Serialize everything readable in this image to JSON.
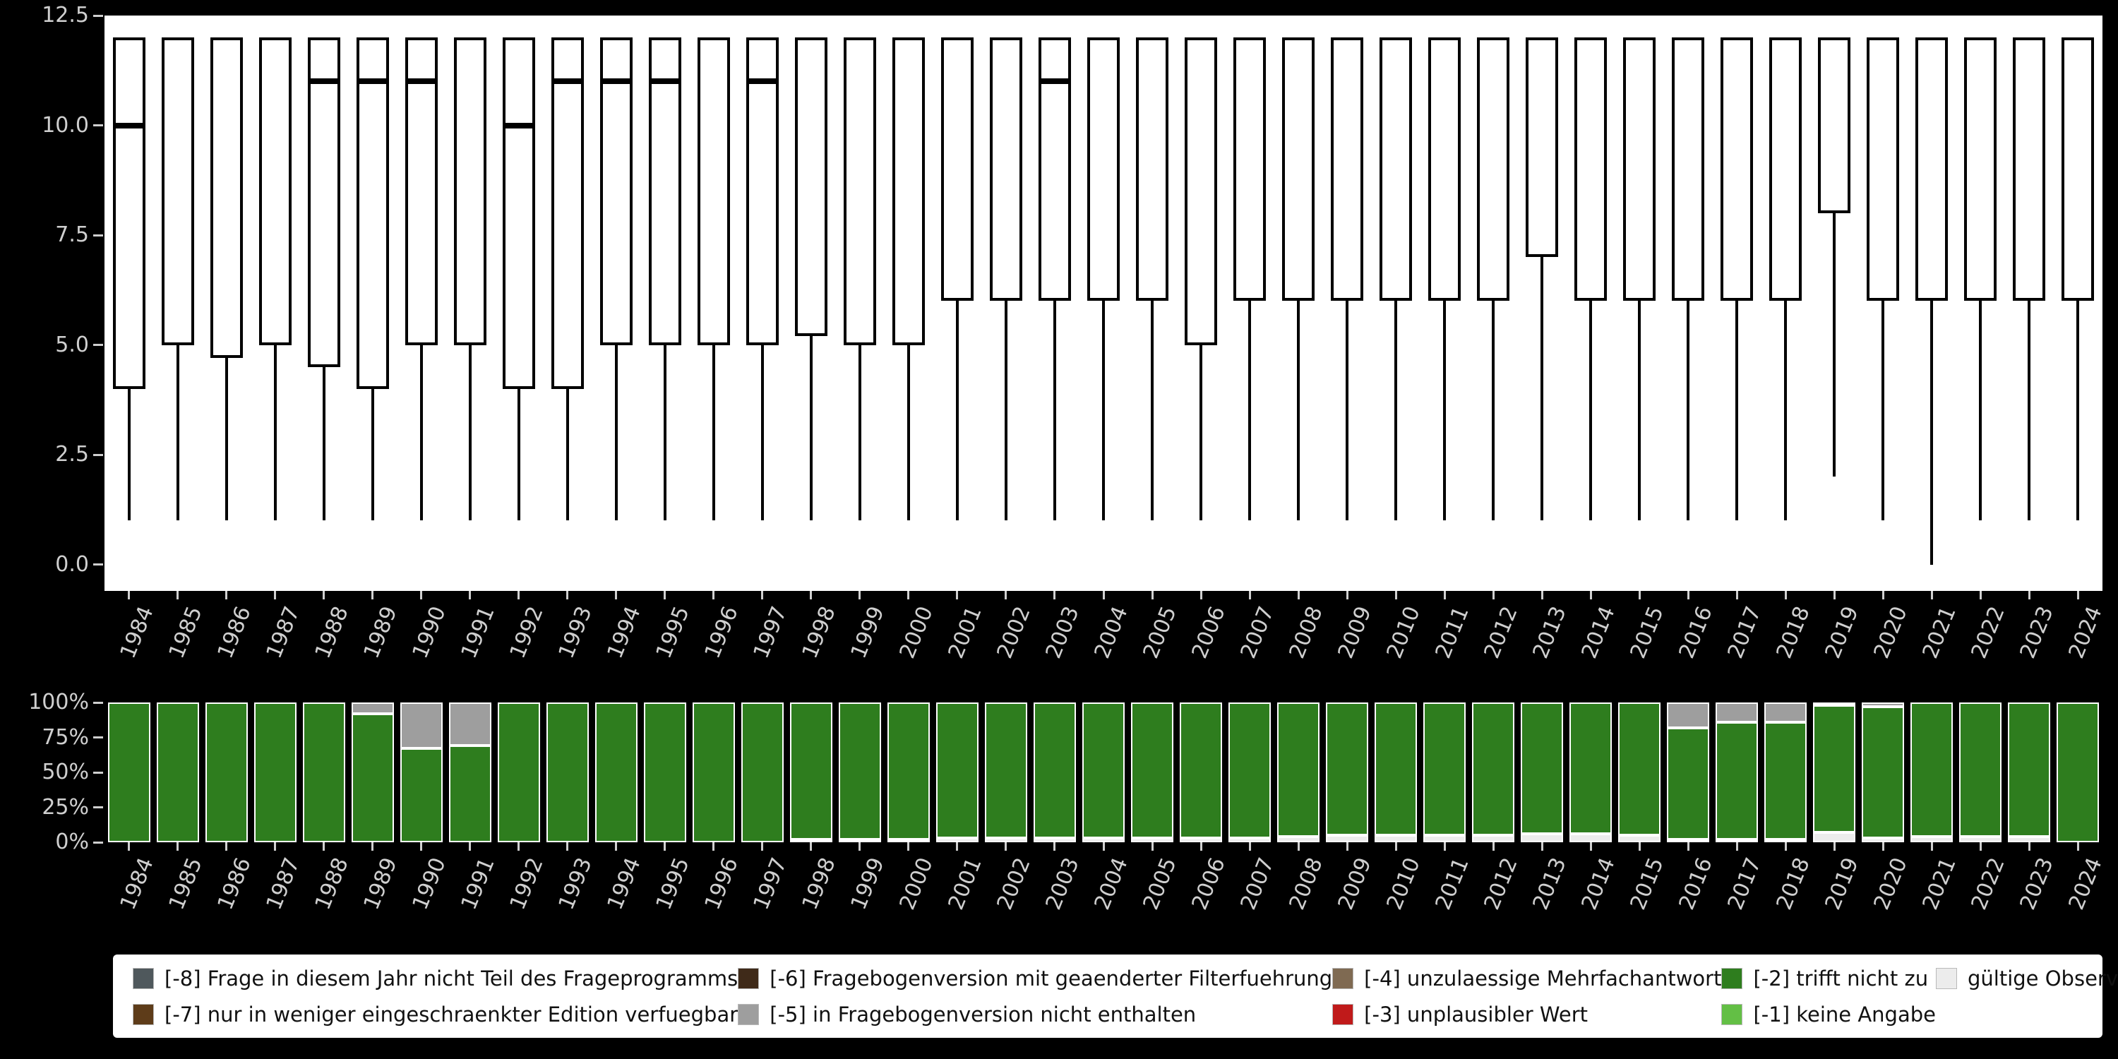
{
  "palette": {
    "-8": "#4f585c",
    "-7": "#5e3c19",
    "-6": "#3f2a19",
    "-5": "#9e9e9e",
    "-4": "#7f6a52",
    "-3": "#c01a1a",
    "-2": "#2e7d1e",
    "-1": "#63bf45",
    "valid": "#ececec"
  },
  "chart_data": [
    {
      "type": "boxplot",
      "title": "",
      "xlabel": "",
      "ylabel": "",
      "ylim": [
        -0.6,
        12.5
      ],
      "grid": false,
      "categories": [
        "1984",
        "1985",
        "1986",
        "1987",
        "1988",
        "1989",
        "1990",
        "1991",
        "1992",
        "1993",
        "1994",
        "1995",
        "1996",
        "1997",
        "1998",
        "1999",
        "2000",
        "2001",
        "2002",
        "2003",
        "2004",
        "2005",
        "2006",
        "2007",
        "2008",
        "2009",
        "2010",
        "2011",
        "2012",
        "2013",
        "2014",
        "2015",
        "2016",
        "2017",
        "2018",
        "2019",
        "2020",
        "2021",
        "2022",
        "2023",
        "2024"
      ],
      "yticks": [
        {
          "value": 12.5,
          "label": "12.5"
        },
        {
          "value": 10,
          "label": "10.0"
        },
        {
          "value": 7.5,
          "label": "7.5"
        },
        {
          "value": 5,
          "label": "5.0"
        },
        {
          "value": 2.5,
          "label": "2.5"
        },
        {
          "value": 0,
          "label": "0.0"
        }
      ],
      "boxes": [
        {
          "year": "1984",
          "lo": 1,
          "q1": 4,
          "median": 10,
          "q3": 12,
          "hi": 12
        },
        {
          "year": "1985",
          "lo": 1,
          "q1": 5,
          "median": null,
          "q3": 12,
          "hi": 12
        },
        {
          "year": "1986",
          "lo": 1,
          "q1": 4.7,
          "median": null,
          "q3": 12,
          "hi": 12
        },
        {
          "year": "1987",
          "lo": 1,
          "q1": 5,
          "median": null,
          "q3": 12,
          "hi": 12
        },
        {
          "year": "1988",
          "lo": 1,
          "q1": 4.5,
          "median": 11,
          "q3": 12,
          "hi": 12
        },
        {
          "year": "1989",
          "lo": 1,
          "q1": 4,
          "median": 11,
          "q3": 12,
          "hi": 12
        },
        {
          "year": "1990",
          "lo": 1,
          "q1": 5,
          "median": 11,
          "q3": 12,
          "hi": 12
        },
        {
          "year": "1991",
          "lo": 1,
          "q1": 5,
          "median": null,
          "q3": 12,
          "hi": 12
        },
        {
          "year": "1992",
          "lo": 1,
          "q1": 4,
          "median": 10,
          "q3": 12,
          "hi": 12
        },
        {
          "year": "1993",
          "lo": 1,
          "q1": 4,
          "median": 11,
          "q3": 12,
          "hi": 12
        },
        {
          "year": "1994",
          "lo": 1,
          "q1": 5,
          "median": 11,
          "q3": 12,
          "hi": 12
        },
        {
          "year": "1995",
          "lo": 1,
          "q1": 5,
          "median": 11,
          "q3": 12,
          "hi": 12
        },
        {
          "year": "1996",
          "lo": 1,
          "q1": 5,
          "median": null,
          "q3": 12,
          "hi": 12
        },
        {
          "year": "1997",
          "lo": 1,
          "q1": 5,
          "median": 11,
          "q3": 12,
          "hi": 12
        },
        {
          "year": "1998",
          "lo": 1,
          "q1": 5.2,
          "median": null,
          "q3": 12,
          "hi": 12
        },
        {
          "year": "1999",
          "lo": 1,
          "q1": 5,
          "median": null,
          "q3": 12,
          "hi": 12
        },
        {
          "year": "2000",
          "lo": 1,
          "q1": 5,
          "median": null,
          "q3": 12,
          "hi": 12
        },
        {
          "year": "2001",
          "lo": 1,
          "q1": 6,
          "median": null,
          "q3": 12,
          "hi": 12
        },
        {
          "year": "2002",
          "lo": 1,
          "q1": 6,
          "median": null,
          "q3": 12,
          "hi": 12
        },
        {
          "year": "2003",
          "lo": 1,
          "q1": 6,
          "median": 11,
          "q3": 12,
          "hi": 12
        },
        {
          "year": "2004",
          "lo": 1,
          "q1": 6,
          "median": null,
          "q3": 12,
          "hi": 12
        },
        {
          "year": "2005",
          "lo": 1,
          "q1": 6,
          "median": null,
          "q3": 12,
          "hi": 12
        },
        {
          "year": "2006",
          "lo": 1,
          "q1": 5,
          "median": null,
          "q3": 12,
          "hi": 12
        },
        {
          "year": "2007",
          "lo": 1,
          "q1": 6,
          "median": null,
          "q3": 12,
          "hi": 12
        },
        {
          "year": "2008",
          "lo": 1,
          "q1": 6,
          "median": null,
          "q3": 12,
          "hi": 12
        },
        {
          "year": "2009",
          "lo": 1,
          "q1": 6,
          "median": null,
          "q3": 12,
          "hi": 12
        },
        {
          "year": "2010",
          "lo": 1,
          "q1": 6,
          "median": null,
          "q3": 12,
          "hi": 12
        },
        {
          "year": "2011",
          "lo": 1,
          "q1": 6,
          "median": null,
          "q3": 12,
          "hi": 12
        },
        {
          "year": "2012",
          "lo": 1,
          "q1": 6,
          "median": null,
          "q3": 12,
          "hi": 12
        },
        {
          "year": "2013",
          "lo": 1,
          "q1": 7,
          "median": null,
          "q3": 12,
          "hi": 12
        },
        {
          "year": "2014",
          "lo": 1,
          "q1": 6,
          "median": null,
          "q3": 12,
          "hi": 12
        },
        {
          "year": "2015",
          "lo": 1,
          "q1": 6,
          "median": null,
          "q3": 12,
          "hi": 12
        },
        {
          "year": "2016",
          "lo": 1,
          "q1": 6,
          "median": null,
          "q3": 12,
          "hi": 12
        },
        {
          "year": "2017",
          "lo": 1,
          "q1": 6,
          "median": null,
          "q3": 12,
          "hi": 12
        },
        {
          "year": "2018",
          "lo": 1,
          "q1": 6,
          "median": null,
          "q3": 12,
          "hi": 12
        },
        {
          "year": "2019",
          "lo": 2,
          "q1": 8,
          "median": null,
          "q3": 12,
          "hi": 12
        },
        {
          "year": "2020",
          "lo": 1,
          "q1": 6,
          "median": null,
          "q3": 12,
          "hi": 12
        },
        {
          "year": "2021",
          "lo": 0,
          "q1": 6,
          "median": null,
          "q3": 12,
          "hi": 12
        },
        {
          "year": "2022",
          "lo": 1,
          "q1": 6,
          "median": null,
          "q3": 12,
          "hi": 12
        },
        {
          "year": "2023",
          "lo": 1,
          "q1": 6,
          "median": null,
          "q3": 12,
          "hi": 12
        },
        {
          "year": "2024",
          "lo": 1,
          "q1": 6,
          "median": null,
          "q3": 12,
          "hi": 12
        }
      ]
    },
    {
      "type": "stacked-bar-percent",
      "title": "",
      "xlabel": "",
      "ylabel": "",
      "ylim": [
        0,
        100
      ],
      "yticks": [
        {
          "value": 100,
          "label": "100%"
        },
        {
          "value": 75,
          "label": "75%"
        },
        {
          "value": 50,
          "label": "50%"
        },
        {
          "value": 25,
          "label": "25%"
        },
        {
          "value": 0,
          "label": "0%"
        }
      ],
      "bars": [
        {
          "year": "1984",
          "segments": [
            {
              "key": "-2",
              "pct": 100
            }
          ]
        },
        {
          "year": "1985",
          "segments": [
            {
              "key": "-2",
              "pct": 100
            }
          ]
        },
        {
          "year": "1986",
          "segments": [
            {
              "key": "-2",
              "pct": 100
            }
          ]
        },
        {
          "year": "1987",
          "segments": [
            {
              "key": "-2",
              "pct": 100
            }
          ]
        },
        {
          "year": "1988",
          "segments": [
            {
              "key": "-2",
              "pct": 100
            }
          ]
        },
        {
          "year": "1989",
          "segments": [
            {
              "key": "-2",
              "pct": 92
            },
            {
              "key": "-5",
              "pct": 8
            }
          ]
        },
        {
          "year": "1990",
          "segments": [
            {
              "key": "-2",
              "pct": 67
            },
            {
              "key": "-5",
              "pct": 33
            }
          ]
        },
        {
          "year": "1991",
          "segments": [
            {
              "key": "-2",
              "pct": 69
            },
            {
              "key": "-5",
              "pct": 31
            }
          ]
        },
        {
          "year": "1992",
          "segments": [
            {
              "key": "-2",
              "pct": 100
            }
          ]
        },
        {
          "year": "1993",
          "segments": [
            {
              "key": "-2",
              "pct": 100
            }
          ]
        },
        {
          "year": "1994",
          "segments": [
            {
              "key": "-2",
              "pct": 100
            }
          ]
        },
        {
          "year": "1995",
          "segments": [
            {
              "key": "-2",
              "pct": 100
            }
          ]
        },
        {
          "year": "1996",
          "segments": [
            {
              "key": "-2",
              "pct": 100
            }
          ]
        },
        {
          "year": "1997",
          "segments": [
            {
              "key": "-2",
              "pct": 100
            }
          ]
        },
        {
          "year": "1998",
          "segments": [
            {
              "key": "valid",
              "pct": 2
            },
            {
              "key": "-2",
              "pct": 98
            }
          ]
        },
        {
          "year": "1999",
          "segments": [
            {
              "key": "valid",
              "pct": 2
            },
            {
              "key": "-2",
              "pct": 98
            }
          ]
        },
        {
          "year": "2000",
          "segments": [
            {
              "key": "valid",
              "pct": 2
            },
            {
              "key": "-2",
              "pct": 98
            }
          ]
        },
        {
          "year": "2001",
          "segments": [
            {
              "key": "valid",
              "pct": 3
            },
            {
              "key": "-2",
              "pct": 97
            }
          ]
        },
        {
          "year": "2002",
          "segments": [
            {
              "key": "valid",
              "pct": 3
            },
            {
              "key": "-2",
              "pct": 97
            }
          ]
        },
        {
          "year": "2003",
          "segments": [
            {
              "key": "valid",
              "pct": 3
            },
            {
              "key": "-2",
              "pct": 97
            }
          ]
        },
        {
          "year": "2004",
          "segments": [
            {
              "key": "valid",
              "pct": 3
            },
            {
              "key": "-2",
              "pct": 97
            }
          ]
        },
        {
          "year": "2005",
          "segments": [
            {
              "key": "valid",
              "pct": 3
            },
            {
              "key": "-2",
              "pct": 97
            }
          ]
        },
        {
          "year": "2006",
          "segments": [
            {
              "key": "valid",
              "pct": 3
            },
            {
              "key": "-2",
              "pct": 97
            }
          ]
        },
        {
          "year": "2007",
          "segments": [
            {
              "key": "valid",
              "pct": 3
            },
            {
              "key": "-2",
              "pct": 97
            }
          ]
        },
        {
          "year": "2008",
          "segments": [
            {
              "key": "valid",
              "pct": 4
            },
            {
              "key": "-2",
              "pct": 96
            }
          ]
        },
        {
          "year": "2009",
          "segments": [
            {
              "key": "valid",
              "pct": 5
            },
            {
              "key": "-2",
              "pct": 95
            }
          ]
        },
        {
          "year": "2010",
          "segments": [
            {
              "key": "valid",
              "pct": 5
            },
            {
              "key": "-2",
              "pct": 95
            }
          ]
        },
        {
          "year": "2011",
          "segments": [
            {
              "key": "valid",
              "pct": 5
            },
            {
              "key": "-2",
              "pct": 95
            }
          ]
        },
        {
          "year": "2012",
          "segments": [
            {
              "key": "valid",
              "pct": 5
            },
            {
              "key": "-2",
              "pct": 95
            }
          ]
        },
        {
          "year": "2013",
          "segments": [
            {
              "key": "valid",
              "pct": 6
            },
            {
              "key": "-2",
              "pct": 94
            }
          ]
        },
        {
          "year": "2014",
          "segments": [
            {
              "key": "valid",
              "pct": 6
            },
            {
              "key": "-2",
              "pct": 94
            }
          ]
        },
        {
          "year": "2015",
          "segments": [
            {
              "key": "valid",
              "pct": 5
            },
            {
              "key": "-2",
              "pct": 95
            }
          ]
        },
        {
          "year": "2016",
          "segments": [
            {
              "key": "valid",
              "pct": 2
            },
            {
              "key": "-2",
              "pct": 80
            },
            {
              "key": "-5",
              "pct": 18
            }
          ]
        },
        {
          "year": "2017",
          "segments": [
            {
              "key": "valid",
              "pct": 2
            },
            {
              "key": "-2",
              "pct": 84
            },
            {
              "key": "-5",
              "pct": 14
            }
          ]
        },
        {
          "year": "2018",
          "segments": [
            {
              "key": "valid",
              "pct": 2
            },
            {
              "key": "-2",
              "pct": 84
            },
            {
              "key": "-5",
              "pct": 14
            }
          ]
        },
        {
          "year": "2019",
          "segments": [
            {
              "key": "valid",
              "pct": 7
            },
            {
              "key": "-2",
              "pct": 91
            },
            {
              "key": "-5",
              "pct": 2
            }
          ]
        },
        {
          "year": "2020",
          "segments": [
            {
              "key": "valid",
              "pct": 3
            },
            {
              "key": "-2",
              "pct": 94
            },
            {
              "key": "-5",
              "pct": 3
            }
          ]
        },
        {
          "year": "2021",
          "segments": [
            {
              "key": "valid",
              "pct": 4
            },
            {
              "key": "-2",
              "pct": 96
            }
          ]
        },
        {
          "year": "2022",
          "segments": [
            {
              "key": "valid",
              "pct": 4
            },
            {
              "key": "-2",
              "pct": 96
            }
          ]
        },
        {
          "year": "2023",
          "segments": [
            {
              "key": "valid",
              "pct": 4
            },
            {
              "key": "-2",
              "pct": 96
            }
          ]
        },
        {
          "year": "2024",
          "segments": [
            {
              "key": "-2",
              "pct": 100
            }
          ]
        }
      ]
    }
  ],
  "legend": {
    "position": "bottom",
    "items": [
      {
        "key": "-8",
        "label": "[-8] Frage in diesem Jahr nicht Teil des Frageprogramms"
      },
      {
        "key": "-7",
        "label": "[-7] nur in weniger eingeschraenkter Edition verfuegbar"
      },
      {
        "key": "-6",
        "label": "[-6] Fragebogenversion mit geaenderter Filterfuehrung"
      },
      {
        "key": "-5",
        "label": "[-5] in Fragebogenversion nicht enthalten"
      },
      {
        "key": "-4",
        "label": "[-4] unzulaessige Mehrfachantwort"
      },
      {
        "key": "-3",
        "label": "[-3] unplausibler Wert"
      },
      {
        "key": "-2",
        "label": "[-2] trifft nicht zu"
      },
      {
        "key": "-1",
        "label": "[-1] keine Angabe"
      },
      {
        "key": "valid",
        "label": "gültige Observationen"
      }
    ]
  }
}
